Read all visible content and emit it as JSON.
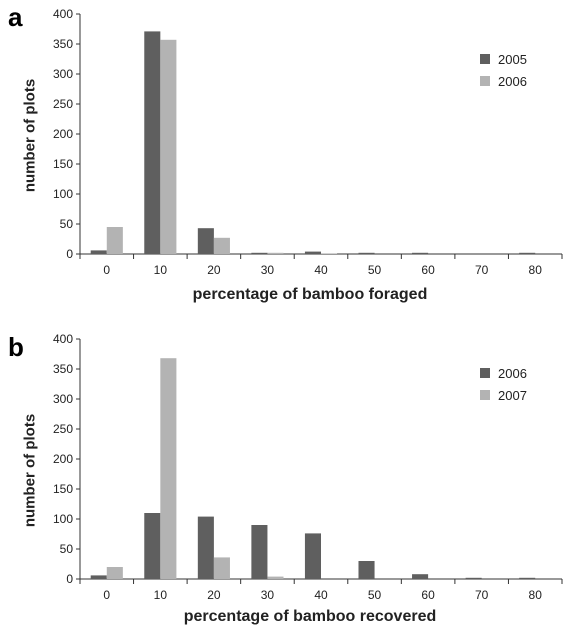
{
  "colors": {
    "dark": "#5f5f5f",
    "light": "#b3b3b3",
    "axis": "#333333"
  },
  "chart_data": [
    {
      "panel": "a",
      "type": "bar",
      "categories": [
        "0",
        "10",
        "20",
        "30",
        "40",
        "50",
        "60",
        "70",
        "80"
      ],
      "series": [
        {
          "name": "2005",
          "values": [
            6,
            371,
            43,
            2,
            4,
            2,
            2,
            0,
            2
          ]
        },
        {
          "name": "2006",
          "values": [
            45,
            357,
            27,
            2,
            1,
            0,
            0,
            0,
            0
          ]
        }
      ],
      "xlabel": "percentage of bamboo foraged",
      "ylabel": "number of plots",
      "ylim": [
        0,
        400
      ],
      "yticks": [
        "0",
        "50",
        "100",
        "150",
        "200",
        "250",
        "300",
        "350",
        "400"
      ],
      "legend_position": "top-right",
      "grid": false
    },
    {
      "panel": "b",
      "type": "bar",
      "categories": [
        "0",
        "10",
        "20",
        "30",
        "40",
        "50",
        "60",
        "70",
        "80"
      ],
      "series": [
        {
          "name": "2006",
          "values": [
            6,
            110,
            104,
            90,
            76,
            30,
            8,
            2,
            2
          ]
        },
        {
          "name": "2007",
          "values": [
            20,
            368,
            36,
            4,
            0,
            0,
            0,
            0,
            0
          ]
        }
      ],
      "xlabel": "percentage of bamboo recovered",
      "ylabel": "number of plots",
      "ylim": [
        0,
        400
      ],
      "yticks": [
        "0",
        "50",
        "100",
        "150",
        "200",
        "250",
        "300",
        "350",
        "400"
      ],
      "legend_position": "top-right",
      "grid": false
    }
  ]
}
